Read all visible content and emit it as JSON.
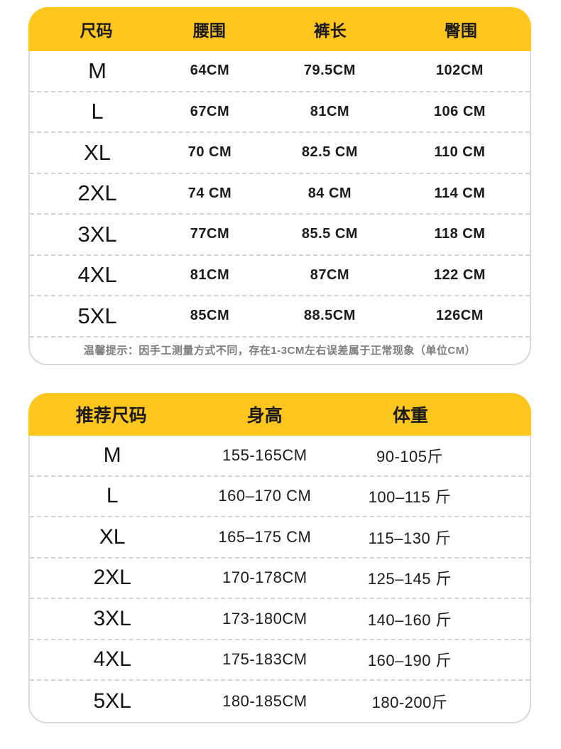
{
  "spec_table": {
    "columns": {
      "size": "尺码",
      "waist": "腰围",
      "pants_length": "裤长",
      "hip": "臀围"
    },
    "rows": [
      {
        "size": "M",
        "waist": "64CM",
        "pants_length": "79.5CM",
        "hip": "102CM"
      },
      {
        "size": "L",
        "waist": "67CM",
        "pants_length": "81CM",
        "hip": "106 CM"
      },
      {
        "size": "XL",
        "waist": "70 CM",
        "pants_length": "82.5 CM",
        "hip": "110 CM"
      },
      {
        "size": "2XL",
        "waist": "74 CM",
        "pants_length": "84 CM",
        "hip": "114 CM"
      },
      {
        "size": "3XL",
        "waist": "77CM",
        "pants_length": "85.5 CM",
        "hip": "118 CM"
      },
      {
        "size": "4XL",
        "waist": "81CM",
        "pants_length": "87CM",
        "hip": "122 CM"
      },
      {
        "size": "5XL",
        "waist": "85CM",
        "pants_length": "88.5CM",
        "hip": "126CM"
      }
    ],
    "note": "温馨提示：因手工测量方式不同，存在1-3CM左右误差属于正常现象（单位CM）"
  },
  "recommend_table": {
    "columns": {
      "size": "推荐尺码",
      "height": "身高",
      "weight": "体重"
    },
    "rows": [
      {
        "size": "M",
        "height": "155-165CM",
        "weight": "90-105斤"
      },
      {
        "size": "L",
        "height": "160–170 CM",
        "weight": "100–115 斤"
      },
      {
        "size": "XL",
        "height": "165–175 CM",
        "weight": "115–130 斤"
      },
      {
        "size": "2XL",
        "height": "170-178CM",
        "weight": "125–145 斤"
      },
      {
        "size": "3XL",
        "height": "173-180CM",
        "weight": "140–160 斤"
      },
      {
        "size": "4XL",
        "height": "175-183CM",
        "weight": "160–190 斤"
      },
      {
        "size": "5XL",
        "height": "180-185CM",
        "weight": "180-200斤"
      }
    ]
  },
  "colors": {
    "header_yellow": "#FFC61E",
    "text_black": "#1b1b1b",
    "note_gray": "#7d7d7d",
    "border_gray": "#d9d9d9"
  }
}
